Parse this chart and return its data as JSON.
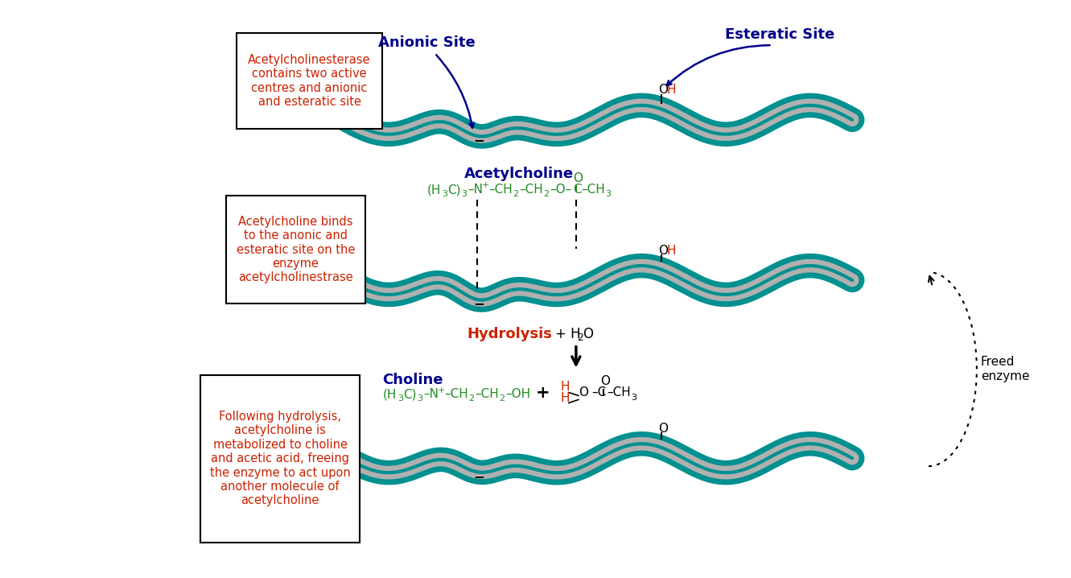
{
  "bg_color": "#ffffff",
  "fig_width": 13.31,
  "fig_height": 7.18,
  "box1_text": "Acetylcholinesterase\ncontains two active\ncentres and anionic\nand esteratic site",
  "box2_text": "Acetylcholine binds\nto the anonic and\nesteratic site on the\nenzyme\nacetylcholinestrase",
  "box3_text": "Following hydrolysis,\nacetylcholine is\nmetabolized to choline\nand acetic acid, freeing\nthe enzyme to act upon\nanother molecule of\nacetylcholine",
  "red_color": "#cc2200",
  "dark_blue": "#00008B",
  "green_color": "#228B22",
  "teal_color": "#009090",
  "gray_color": "#A8A8A8"
}
